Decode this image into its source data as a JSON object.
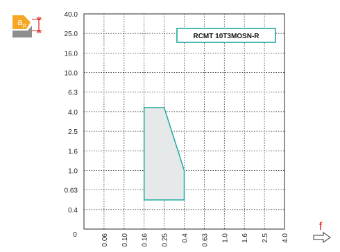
{
  "colors": {
    "outline": "#20a8a0",
    "region_fill": "#e6e9ea",
    "grid": "#2a2a2a",
    "badge_orange": "#f5a623",
    "badge_grey": "#8e8e8e",
    "badge_text": "#ffffff",
    "f_label": "#e02020"
  },
  "badge": {
    "symbol": "a",
    "subscript": "p",
    "icon": "depth-of-cut-icon"
  },
  "f_label": "f",
  "arrow_icon": "right-arrow-outline-icon",
  "chart_data": {
    "type": "area",
    "title": "RCMT 10T3MOSN-R",
    "x_axis": {
      "quantity": "f",
      "scale": "ordinal",
      "ticks": [
        "0",
        "0.06",
        "0.10",
        "0.16",
        "0.25",
        "0.4",
        "0.63",
        "1.0",
        "1.6",
        "2.5",
        "4.0"
      ]
    },
    "y_axis": {
      "quantity": "ap",
      "scale": "ordinal",
      "ticks": [
        "0",
        "0.4",
        "0.63",
        "1.0",
        "1.6",
        "2.5",
        "4.0",
        "6.3",
        "10.0",
        "16.0",
        "25.0",
        "40.0"
      ]
    },
    "grid": true,
    "region": {
      "points": [
        {
          "x": 0.16,
          "y": 0.5
        },
        {
          "x": 0.16,
          "y": 4.4
        },
        {
          "x": 0.25,
          "y": 4.4
        },
        {
          "x": 0.4,
          "y": 1.0
        },
        {
          "x": 0.4,
          "y": 0.5
        }
      ]
    }
  }
}
